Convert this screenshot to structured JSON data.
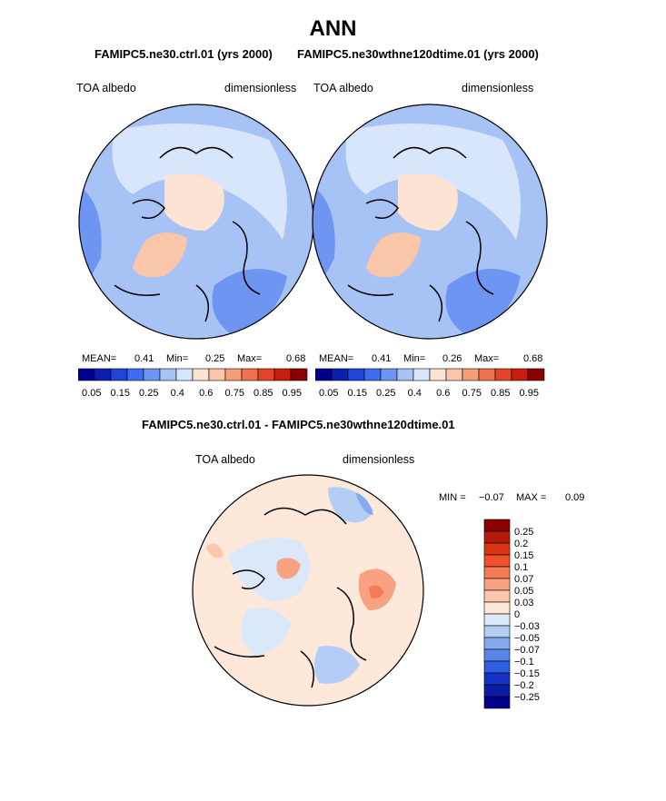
{
  "figure": {
    "title": "ANN",
    "subtitle_left": "FAMIPC5.ne30.ctrl.01 (yrs 2000)",
    "subtitle_right": "FAMIPC5.ne30wthne120dtime.01 (yrs 2000)",
    "diff_title": "FAMIPC5.ne30.ctrl.01 - FAMIPC5.ne30wthne120dtime.01"
  },
  "panels": [
    {
      "variable": "TOA albedo",
      "units": "dimensionless",
      "mean_label": "MEAN=",
      "mean": "0.41",
      "min_label": "Min=",
      "min": "0.25",
      "max_label": "Max=",
      "max": "0.68"
    },
    {
      "variable": "TOA albedo",
      "units": "dimensionless",
      "mean_label": "MEAN=",
      "mean": "0.41",
      "min_label": "Min=",
      "min": "0.26",
      "max_label": "Max=",
      "max": "0.68"
    }
  ],
  "diff_panel": {
    "variable": "TOA albedo",
    "units": "dimensionless",
    "min_label": "MIN =",
    "min": "−0.07",
    "max_label": "MAX =",
    "max": "0.09"
  },
  "colorbar_main": {
    "ticks": [
      "0.05",
      "0.15",
      "0.25",
      "0.4",
      "0.6",
      "0.75",
      "0.85",
      "0.95"
    ],
    "colors": [
      "#00008b",
      "#0a1fb0",
      "#1f45d8",
      "#3e6cf0",
      "#6f95f2",
      "#a7c3f5",
      "#d8e6fb",
      "#fde3d4",
      "#fac6aa",
      "#f69e7a",
      "#f0724e",
      "#e4452a",
      "#c81e0e",
      "#8b0000"
    ]
  },
  "colorbar_diff": {
    "labels": [
      "0.25",
      "0.2",
      "0.15",
      "0.1",
      "0.07",
      "0.05",
      "0.03",
      "0",
      "−0.03",
      "−0.05",
      "−0.07",
      "−0.1",
      "−0.15",
      "−0.2",
      "−0.25"
    ],
    "colors": [
      "#8b0000",
      "#b41a08",
      "#d93512",
      "#f0502a",
      "#f47b55",
      "#f8a282",
      "#fbc7ad",
      "#fde8da",
      "#dbe8fa",
      "#b4cdf5",
      "#86aaf0",
      "#5a86ea",
      "#2f5ee2",
      "#1432c6",
      "#0a1ba6",
      "#00008b"
    ]
  },
  "chart_data": [
    {
      "type": "heatmap",
      "title": "FAMIPC5.ne30.ctrl.01 (yrs 2000)",
      "variable": "TOA albedo",
      "units": "dimensionless",
      "projection": "north polar stereographic",
      "mean": 0.41,
      "min": 0.25,
      "max": 0.68,
      "levels": [
        0.05,
        0.1,
        0.15,
        0.2,
        0.25,
        0.3,
        0.4,
        0.5,
        0.6,
        0.7,
        0.75,
        0.8,
        0.85,
        0.9,
        0.95
      ]
    },
    {
      "type": "heatmap",
      "title": "FAMIPC5.ne30wthne120dtime.01 (yrs 2000)",
      "variable": "TOA albedo",
      "units": "dimensionless",
      "projection": "north polar stereographic",
      "mean": 0.41,
      "min": 0.26,
      "max": 0.68,
      "levels": [
        0.05,
        0.1,
        0.15,
        0.2,
        0.25,
        0.3,
        0.4,
        0.5,
        0.6,
        0.7,
        0.75,
        0.8,
        0.85,
        0.9,
        0.95
      ]
    },
    {
      "type": "heatmap",
      "title": "FAMIPC5.ne30.ctrl.01 - FAMIPC5.ne30wthne120dtime.01",
      "variable": "TOA albedo",
      "units": "dimensionless",
      "projection": "north polar stereographic",
      "min": -0.07,
      "max": 0.09,
      "levels": [
        -0.25,
        -0.2,
        -0.15,
        -0.1,
        -0.07,
        -0.05,
        -0.03,
        0,
        0.03,
        0.05,
        0.07,
        0.1,
        0.15,
        0.2,
        0.25
      ]
    }
  ]
}
